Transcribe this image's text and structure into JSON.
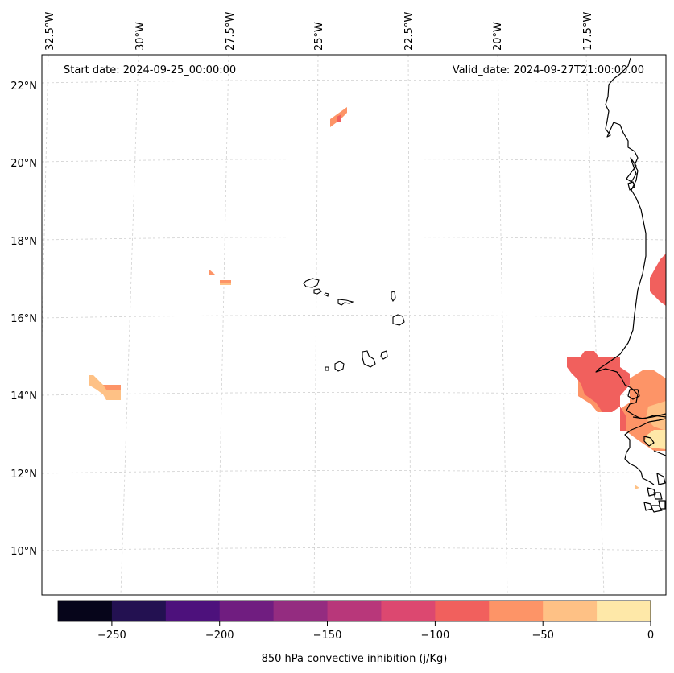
{
  "header": {
    "start_date": "Start date: 2024-09-25_00:00:00",
    "valid_date": "Valid_date: 2024-09-27T21:00:00.00"
  },
  "map": {
    "lon_labels": [
      "32.5°W",
      "30°W",
      "27.5°W",
      "25°W",
      "22.5°W",
      "20°W",
      "17.5°W"
    ],
    "lat_labels": [
      "22°N",
      "20°N",
      "18°N",
      "16°N",
      "14°N",
      "12°N",
      "10°N"
    ],
    "field": "850 hPa convective inhibition",
    "cin_colors": {
      "near_zero": "#fee8a8",
      "minus_25_to_minus_50": "#fec185",
      "minus_50_to_minus_75": "#fd9467",
      "minus_75_to_minus_100": "#f1605d"
    }
  },
  "colorbar": {
    "label": "850 hPa convective inhibition (j/Kg)",
    "ticks": [
      "−250",
      "−200",
      "−150",
      "−100",
      "−50",
      "0"
    ],
    "colors": [
      "#06051a",
      "#231151",
      "#4d117c",
      "#701d80",
      "#942c80",
      "#b8377a",
      "#dc4870",
      "#f1605d",
      "#fd9467",
      "#fec185",
      "#fee8a8"
    ]
  }
}
